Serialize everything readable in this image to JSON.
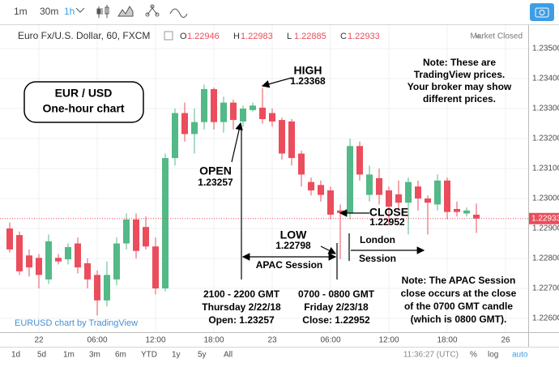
{
  "toolbar": {
    "intervals": [
      "1m",
      "30m",
      "1h"
    ]
  },
  "header": {
    "symbol": "Euro Fx/U.S. Dollar, 60, FXCM",
    "keys": [
      "O",
      "H",
      "L",
      "C"
    ],
    "status": "Market Closed"
  },
  "chart_data": {
    "type": "candlestick",
    "up_color": "#53b987",
    "down_color": "#eb4d5c",
    "categories": [
      null,
      null,
      null,
      "22",
      null,
      null,
      null,
      null,
      null,
      "06:00",
      null,
      null,
      null,
      null,
      null,
      "12:00",
      null,
      null,
      null,
      null,
      null,
      "18:00",
      null,
      null,
      null,
      null,
      null,
      "23",
      null,
      null,
      null,
      null,
      null,
      "06:00",
      null,
      null,
      null,
      null,
      null,
      "12:00",
      null,
      null,
      null,
      null,
      null,
      "18:00",
      null,
      null,
      null,
      null,
      null,
      "26"
    ],
    "open": [
      1.229,
      1.22878,
      1.2281,
      1.22802,
      1.2273,
      1.22802,
      1.22797,
      1.2285,
      1.22784,
      1.22745,
      1.2266,
      1.2273,
      1.2285,
      1.2293,
      1.22905,
      1.2284,
      1.227,
      1.23135,
      1.23285,
      1.23215,
      1.23255,
      1.23365,
      1.23255,
      1.2332,
      1.23257,
      1.23295,
      1.23303,
      1.23285,
      1.23262,
      1.23257,
      1.2315,
      1.23055,
      1.23045,
      1.23027,
      1.2296,
      1.22952,
      1.23175,
      1.23012,
      1.23068,
      1.23027,
      1.23014,
      1.22986,
      1.2304,
      1.23,
      1.2298,
      1.2306,
      1.22965,
      1.2295,
      1.22946,
      null,
      null,
      null
    ],
    "high": [
      1.2292,
      1.2289,
      1.2283,
      1.22815,
      1.2288,
      1.22815,
      1.2285,
      1.2287,
      1.228,
      1.2276,
      1.2279,
      1.2287,
      1.2295,
      1.2295,
      1.2294,
      1.2287,
      1.2315,
      1.233,
      1.2332,
      1.233,
      1.2338,
      1.2337,
      1.2334,
      1.2333,
      1.2331,
      1.2332,
      1.23368,
      1.233,
      1.2327,
      1.23265,
      1.2316,
      1.2307,
      1.2306,
      1.2304,
      1.2298,
      1.232,
      1.2319,
      1.2311,
      1.231,
      1.2304,
      1.2306,
      1.2307,
      1.2306,
      1.2301,
      1.2308,
      1.2307,
      1.2299,
      1.2297,
      1.22983,
      null,
      null,
      null
    ],
    "low": [
      1.2282,
      1.22745,
      1.2274,
      1.227,
      1.22715,
      1.2278,
      1.2278,
      1.2275,
      1.227,
      1.2261,
      1.2264,
      1.2271,
      1.2283,
      1.228,
      1.2283,
      1.2268,
      1.2269,
      1.2311,
      1.2319,
      1.2315,
      1.2323,
      1.2323,
      1.2322,
      1.2323,
      1.2324,
      1.2329,
      1.2325,
      1.2324,
      1.2313,
      1.2311,
      1.2304,
      1.2301,
      1.2299,
      1.2293,
      1.22798,
      1.2293,
      1.2306,
      1.2299,
      1.2298,
      1.2291,
      1.2296,
      1.2288,
      1.2296,
      1.2288,
      1.2296,
      1.2293,
      1.2294,
      1.2294,
      1.22885,
      null,
      null,
      null
    ],
    "close": [
      1.2283,
      1.22757,
      1.2277,
      1.22745,
      1.22857,
      1.2279,
      1.22838,
      1.2277,
      1.2273,
      1.2266,
      1.22745,
      1.2285,
      1.2293,
      1.22825,
      1.2284,
      1.227,
      1.23135,
      1.23285,
      1.23215,
      1.23255,
      1.23365,
      1.23255,
      1.2332,
      1.23262,
      1.233,
      1.2331,
      1.23265,
      1.23257,
      1.2315,
      1.23135,
      1.2308,
      1.23027,
      1.23012,
      1.22946,
      1.22952,
      1.23175,
      1.2308,
      1.2308,
      1.23012,
      1.22973,
      1.22986,
      1.23055,
      1.23,
      1.22986,
      1.2306,
      1.22955,
      1.22955,
      1.2296,
      1.22933,
      null,
      null,
      null
    ],
    "ylim": [
      1.22554,
      1.23565
    ],
    "yticks": [
      {
        "value": 1.235,
        "label": "1.23500"
      },
      {
        "value": 1.234,
        "label": "1.23400"
      },
      {
        "value": 1.233,
        "label": "1.23300"
      },
      {
        "value": 1.232,
        "label": "1.23200"
      },
      {
        "value": 1.231,
        "label": "1.23100"
      },
      {
        "value": 1.23,
        "label": "1.23000"
      },
      {
        "value": 1.229,
        "label": "1.22900"
      },
      {
        "value": 1.228,
        "label": "1.22800"
      },
      {
        "value": 1.227,
        "label": "1.22700"
      },
      {
        "value": 1.226,
        "label": "1.22600"
      }
    ],
    "grid": true,
    "annotations": {
      "box": [
        "EUR / USD",
        "One-hour chart"
      ],
      "high": [
        "HIGH",
        "1.23368"
      ],
      "note1": [
        "Note:  These are",
        "TradingView prices.",
        "Your broker may show",
        "different prices."
      ],
      "open": [
        "OPEN",
        "1.23257"
      ],
      "close": [
        "CLOSE",
        "1.22952"
      ],
      "low": [
        "LOW",
        "1.22798"
      ],
      "london": [
        "London",
        "Session"
      ],
      "apac": "APAC Session",
      "open_time": [
        "2100 - 2200 GMT",
        "Thursday 2/22/18",
        "Open: 1.23257"
      ],
      "close_time": [
        "0700 - 0800 GMT",
        "Friday 2/23/18",
        "Close: 1.22952"
      ],
      "note2": [
        "Note:  The APAC Session",
        "close occurs at the close",
        "of the 0700 GMT candle",
        "(which is 0800 GMT)."
      ]
    },
    "watermark": "EURUSD chart by TradingView"
  },
  "footer": {
    "ranges": [
      "1d",
      "5d",
      "1m",
      "3m",
      "6m",
      "YTD",
      "1y",
      "5y",
      "All"
    ],
    "time": "11:36:27 (UTC)",
    "options": [
      "%",
      "log",
      "auto"
    ]
  }
}
